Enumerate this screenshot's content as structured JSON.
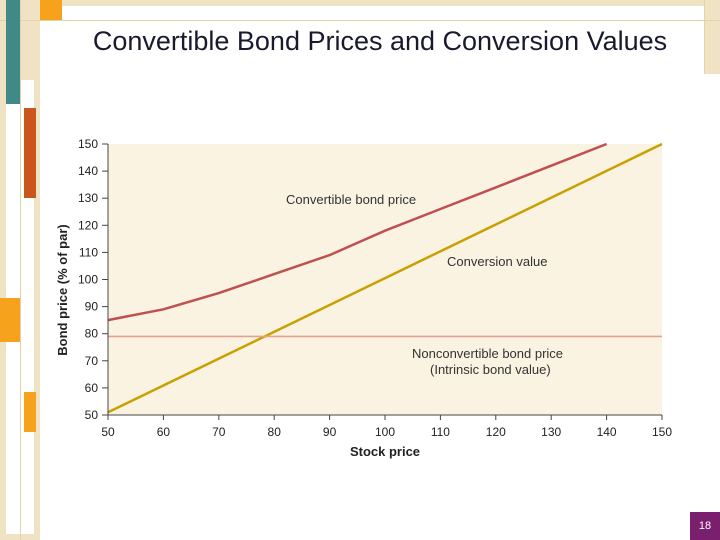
{
  "slide": {
    "title": "Convertible Bond Prices and Conversion Values",
    "page_number": "18"
  },
  "colors": {
    "frame_tan": "#efe3c4",
    "frame_teal": "#3f8a86",
    "frame_orange": "#f6a21c",
    "frame_rust": "#c9561c",
    "frame_purple": "#7a1f6e",
    "plot_bg": "#faf3e2",
    "convertible_line": "#c05050",
    "conversion_line": "#c8a000",
    "nonconvertible_line": "#e8a090"
  },
  "chart_data": {
    "type": "line",
    "title": "",
    "xlabel": "Stock price",
    "ylabel": "Bond price (% of par)",
    "xlim": [
      50,
      150
    ],
    "ylim": [
      50,
      150
    ],
    "xticks": [
      50,
      60,
      70,
      80,
      90,
      100,
      110,
      120,
      130,
      140,
      150
    ],
    "yticks": [
      50,
      60,
      70,
      80,
      90,
      100,
      110,
      120,
      130,
      140,
      150
    ],
    "grid": false,
    "series": [
      {
        "name": "Convertible bond price",
        "x": [
          50,
          60,
          70,
          80,
          90,
          100,
          110,
          120,
          130,
          140
        ],
        "y": [
          85,
          89,
          95,
          102,
          109,
          118,
          126,
          134,
          142,
          150
        ]
      },
      {
        "name": "Conversion value",
        "x": [
          50,
          150
        ],
        "y": [
          51,
          150
        ]
      },
      {
        "name": "Nonconvertible bond price (Intrinsic bond value)",
        "x": [
          50,
          150
        ],
        "y": [
          79,
          79
        ]
      }
    ],
    "annotations": {
      "convertible": "Convertible bond price",
      "conversion": "Conversion value",
      "nonconvertible_1": "Nonconvertible bond price",
      "nonconvertible_2": "(Intrinsic bond value)"
    }
  }
}
